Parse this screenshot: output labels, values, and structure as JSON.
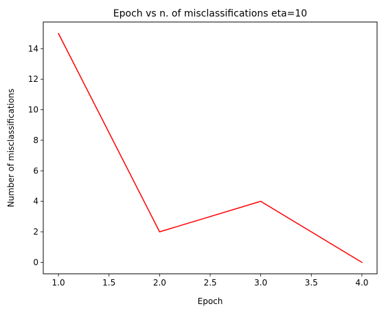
{
  "chart_data": {
    "type": "line",
    "title": "Epoch vs n. of misclassifications eta=10",
    "xlabel": "Epoch",
    "ylabel": "Number of misclassifications",
    "x": [
      1.0,
      2.0,
      3.0,
      4.0
    ],
    "series": [
      {
        "values": [
          15,
          2,
          4,
          0
        ],
        "color": "#ff0000"
      }
    ],
    "xlim": [
      0.85,
      4.15
    ],
    "ylim": [
      -0.75,
      15.75
    ],
    "xticks": [
      1.0,
      1.5,
      2.0,
      2.5,
      3.0,
      3.5,
      4.0
    ],
    "xtick_labels": [
      "1.0",
      "1.5",
      "2.0",
      "2.5",
      "3.0",
      "3.5",
      "4.0"
    ],
    "yticks": [
      0,
      2,
      4,
      6,
      8,
      10,
      12,
      14
    ],
    "ytick_labels": [
      "0",
      "2",
      "4",
      "6",
      "8",
      "10",
      "12",
      "14"
    ],
    "grid": false,
    "legend": false
  }
}
